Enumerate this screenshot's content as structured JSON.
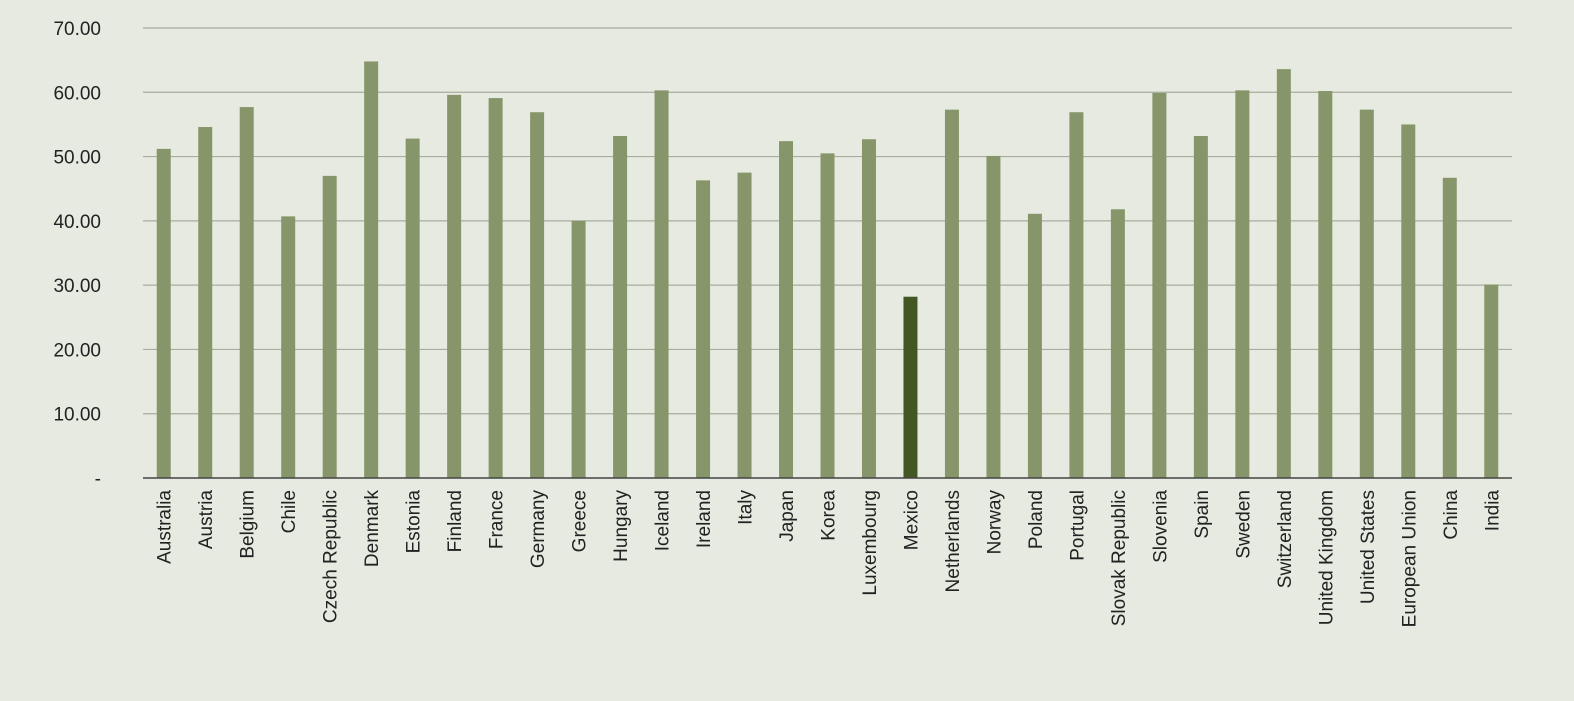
{
  "chart_data": {
    "type": "bar",
    "title": "",
    "xlabel": "",
    "ylabel": "",
    "ylim": [
      0,
      70
    ],
    "yticks": [
      0,
      10,
      20,
      30,
      40,
      50,
      60,
      70
    ],
    "ytick_labels": [
      "-",
      "10.00",
      "20.00",
      "30.00",
      "40.00",
      "50.00",
      "60.00",
      "70.00"
    ],
    "grid": "horizontal",
    "legend": "none",
    "colors": {
      "background": "#e7eae0",
      "bar": "#87966a",
      "highlight": "#435724",
      "grid": "#a8ad9f",
      "axis": "#444444"
    },
    "highlight_category": "Mexico",
    "categories": [
      "Australia",
      "Austria",
      "Belgium",
      "Chile",
      "Czech Republic",
      "Denmark",
      "Estonia",
      "Finland",
      "France",
      "Germany",
      "Greece",
      "Hungary",
      "Iceland",
      "Ireland",
      "Italy",
      "Japan",
      "Korea",
      "Luxembourg",
      "Mexico",
      "Netherlands",
      "Norway",
      "Poland",
      "Portugal",
      "Slovak Republic",
      "Slovenia",
      "Spain",
      "Sweden",
      "Switzerland",
      "United Kingdom",
      "United States",
      "European Union",
      "China",
      "India"
    ],
    "values": [
      51.2,
      54.6,
      57.7,
      40.7,
      47.0,
      64.8,
      52.8,
      59.6,
      59.1,
      56.9,
      40.0,
      53.2,
      60.3,
      46.3,
      47.5,
      52.4,
      50.5,
      52.7,
      28.2,
      57.3,
      50.1,
      41.1,
      56.9,
      41.8,
      59.9,
      53.2,
      60.3,
      63.6,
      60.2,
      57.3,
      55.0,
      46.7,
      30.1
    ]
  }
}
